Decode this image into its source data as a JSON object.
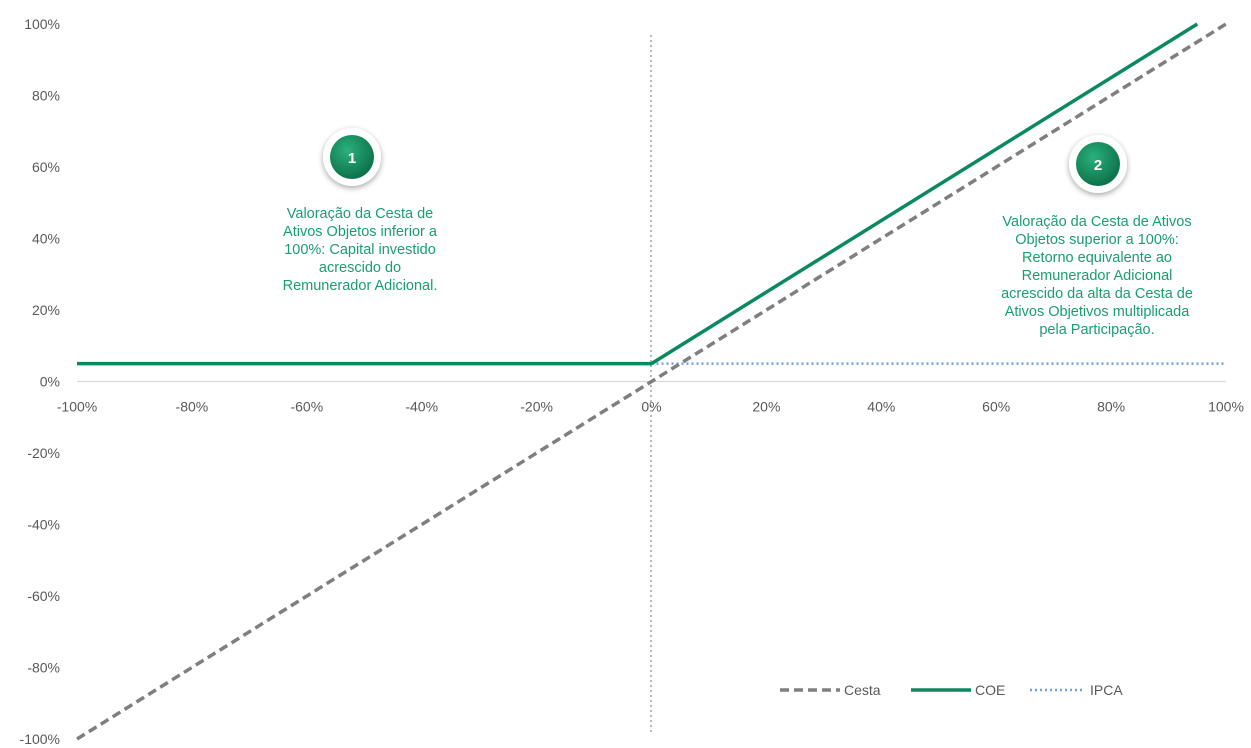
{
  "chart_data": {
    "type": "line",
    "title": "",
    "xlabel": "",
    "ylabel": "",
    "xlim": [
      -100,
      100
    ],
    "ylim": [
      -100,
      100
    ],
    "x_ticks": [
      "-100%",
      "-80%",
      "-60%",
      "-40%",
      "-20%",
      "0%",
      "20%",
      "40%",
      "60%",
      "80%",
      "100%"
    ],
    "y_ticks": [
      "100%",
      "80%",
      "60%",
      "40%",
      "20%",
      "0%",
      "-20%",
      "-40%",
      "-60%",
      "-80%",
      "-100%"
    ],
    "grid": false,
    "legend_position": "bottom-right",
    "series": [
      {
        "name": "Cesta",
        "style": "dashed",
        "color": "#7f7f7f",
        "points": [
          [
            -100,
            -100
          ],
          [
            100,
            100
          ]
        ]
      },
      {
        "name": "COE",
        "style": "solid",
        "color": "#0a8a5c",
        "points": [
          [
            -100,
            5
          ],
          [
            0,
            5
          ],
          [
            95,
            100
          ]
        ]
      },
      {
        "name": "IPCA",
        "style": "dotted",
        "color": "#6fa3dc",
        "points": [
          [
            0,
            5
          ],
          [
            100,
            5
          ]
        ]
      }
    ],
    "annotations": [
      {
        "badge": "1",
        "lines": [
          "Valoração da Cesta de",
          "Ativos Objetos inferior a",
          "100%: Capital investido",
          "acrescido do",
          "Remunerador Adicional."
        ],
        "color": "#1a9e6e"
      },
      {
        "badge": "2",
        "lines": [
          "Valoração da Cesta de Ativos",
          "Objetos superior a 100%:",
          "Retorno equivalente ao",
          "Remunerador Adicional",
          "acrescido da alta da Cesta de",
          "Ativos Objetivos multiplicada",
          "pela Participação."
        ],
        "color": "#1a9e6e"
      }
    ]
  }
}
